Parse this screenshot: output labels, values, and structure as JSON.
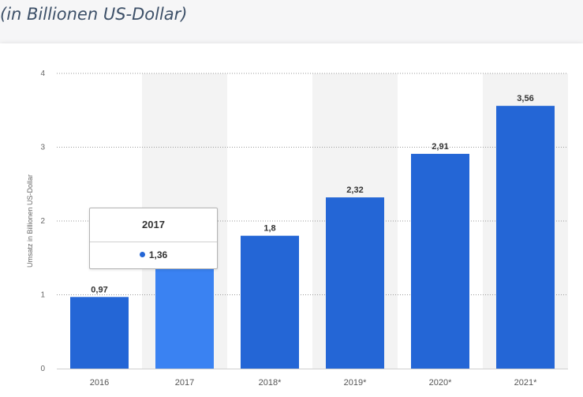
{
  "header": {
    "subtitle": "(in Billionen US-Dollar)"
  },
  "chart_data": {
    "type": "bar",
    "categories": [
      "2016",
      "2017",
      "2018*",
      "2019*",
      "2020*",
      "2021*"
    ],
    "values": [
      0.97,
      1.36,
      1.8,
      2.32,
      2.91,
      3.56
    ],
    "value_labels": [
      "0,97",
      "1,36",
      "1,8",
      "2,32",
      "2,91",
      "3,56"
    ],
    "title": "",
    "xlabel": "",
    "ylabel": "Umsatz in Billionen US-Dollar",
    "ylim": [
      0,
      4
    ],
    "yticks": [
      "0",
      "1",
      "2",
      "3",
      "4"
    ],
    "grid": true,
    "colors": {
      "bar": "#2466d6",
      "bar_highlight": "#3a82f2",
      "stripe": "#f3f3f3"
    }
  },
  "tooltip": {
    "category": "2017",
    "value_label": "1,36",
    "dot_color": "#2466d6"
  }
}
